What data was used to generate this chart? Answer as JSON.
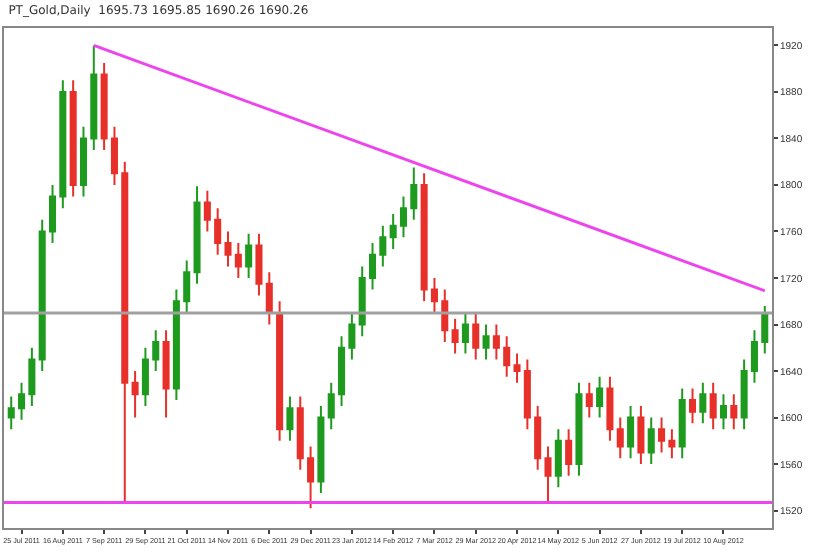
{
  "chart_data": {
    "type": "candlestick",
    "title": "PT_Gold,Daily  1695.73 1695.85 1690.26 1690.26",
    "categories": [
      null,
      "25 Jul 2011",
      null,
      null,
      null,
      "16 Aug 2011",
      null,
      null,
      null,
      "7 Sep 2011",
      null,
      null,
      null,
      "29 Sep 2011",
      null,
      null,
      null,
      "21 Oct 2011",
      null,
      null,
      null,
      "14 Nov 2011",
      null,
      null,
      null,
      "6 Dec 2011",
      null,
      null,
      null,
      "29 Dec 2011",
      null,
      null,
      null,
      "23 Jan 2012",
      null,
      null,
      null,
      "14 Feb 2012",
      null,
      null,
      null,
      "7 Mar 2012",
      null,
      null,
      null,
      "29 Mar 2012",
      null,
      null,
      null,
      "20 Apr 2012",
      null,
      null,
      null,
      "14 May 2012",
      null,
      null,
      null,
      "5 Jun 2012",
      null,
      null,
      null,
      "27 Jun 2012",
      null,
      null,
      null,
      "19 Jul 2012",
      null,
      null,
      null,
      "10 Aug 2012",
      null,
      null,
      null,
      null
    ],
    "ohlc": [
      [
        1600,
        1618,
        1590,
        1608
      ],
      [
        1608,
        1630,
        1598,
        1620
      ],
      [
        1620,
        1660,
        1610,
        1650
      ],
      [
        1650,
        1770,
        1640,
        1760
      ],
      [
        1760,
        1800,
        1750,
        1790
      ],
      [
        1790,
        1890,
        1780,
        1880
      ],
      [
        1880,
        1890,
        1790,
        1800
      ],
      [
        1800,
        1850,
        1790,
        1840
      ],
      [
        1840,
        1920,
        1830,
        1895
      ],
      [
        1895,
        1905,
        1830,
        1840
      ],
      [
        1840,
        1850,
        1800,
        1810
      ],
      [
        1810,
        1820,
        1527,
        1630
      ],
      [
        1630,
        1640,
        1600,
        1620
      ],
      [
        1620,
        1660,
        1610,
        1650
      ],
      [
        1650,
        1675,
        1640,
        1665
      ],
      [
        1665,
        1675,
        1600,
        1625
      ],
      [
        1625,
        1710,
        1615,
        1700
      ],
      [
        1700,
        1735,
        1690,
        1725
      ],
      [
        1725,
        1799,
        1715,
        1785
      ],
      [
        1785,
        1795,
        1760,
        1770
      ],
      [
        1770,
        1780,
        1740,
        1750
      ],
      [
        1750,
        1760,
        1730,
        1740
      ],
      [
        1740,
        1750,
        1720,
        1730
      ],
      [
        1730,
        1758,
        1720,
        1748
      ],
      [
        1748,
        1758,
        1705,
        1715
      ],
      [
        1715,
        1725,
        1680,
        1690
      ],
      [
        1690,
        1700,
        1580,
        1590
      ],
      [
        1590,
        1618,
        1580,
        1608
      ],
      [
        1608,
        1618,
        1555,
        1565
      ],
      [
        1565,
        1575,
        1522,
        1545
      ],
      [
        1545,
        1610,
        1535,
        1600
      ],
      [
        1600,
        1630,
        1590,
        1620
      ],
      [
        1620,
        1670,
        1610,
        1660
      ],
      [
        1660,
        1690,
        1650,
        1680
      ],
      [
        1680,
        1730,
        1670,
        1720
      ],
      [
        1720,
        1750,
        1710,
        1740
      ],
      [
        1740,
        1765,
        1730,
        1755
      ],
      [
        1755,
        1775,
        1745,
        1765
      ],
      [
        1765,
        1790,
        1755,
        1780
      ],
      [
        1780,
        1815,
        1770,
        1800
      ],
      [
        1800,
        1810,
        1700,
        1710
      ],
      [
        1710,
        1720,
        1690,
        1700
      ],
      [
        1700,
        1710,
        1665,
        1675
      ],
      [
        1675,
        1685,
        1655,
        1665
      ],
      [
        1665,
        1690,
        1655,
        1680
      ],
      [
        1680,
        1690,
        1650,
        1660
      ],
      [
        1660,
        1680,
        1650,
        1670
      ],
      [
        1670,
        1680,
        1650,
        1660
      ],
      [
        1660,
        1670,
        1635,
        1645
      ],
      [
        1645,
        1655,
        1630,
        1640
      ],
      [
        1640,
        1650,
        1590,
        1600
      ],
      [
        1600,
        1610,
        1555,
        1565
      ],
      [
        1565,
        1575,
        1527,
        1550
      ],
      [
        1550,
        1590,
        1540,
        1580
      ],
      [
        1580,
        1590,
        1550,
        1560
      ],
      [
        1560,
        1630,
        1550,
        1620
      ],
      [
        1620,
        1630,
        1600,
        1610
      ],
      [
        1610,
        1635,
        1600,
        1625
      ],
      [
        1625,
        1635,
        1580,
        1590
      ],
      [
        1590,
        1600,
        1565,
        1575
      ],
      [
        1575,
        1610,
        1565,
        1600
      ],
      [
        1600,
        1610,
        1560,
        1570
      ],
      [
        1570,
        1600,
        1560,
        1590
      ],
      [
        1590,
        1600,
        1570,
        1580
      ],
      [
        1580,
        1590,
        1565,
        1575
      ],
      [
        1575,
        1625,
        1565,
        1615
      ],
      [
        1615,
        1625,
        1595,
        1605
      ],
      [
        1605,
        1630,
        1595,
        1620
      ],
      [
        1620,
        1630,
        1590,
        1600
      ],
      [
        1600,
        1620,
        1590,
        1610
      ],
      [
        1610,
        1620,
        1590,
        1600
      ],
      [
        1600,
        1650,
        1590,
        1640
      ],
      [
        1640,
        1675,
        1630,
        1665
      ],
      [
        1665,
        1696,
        1655,
        1690
      ]
    ],
    "colors": [
      "#1e9b1e",
      "#1e9b1e",
      "#1e9b1e",
      "#1e9b1e",
      "#1e9b1e",
      "#1e9b1e",
      "#e8302a",
      "#1e9b1e",
      "#1e9b1e",
      "#e8302a",
      "#e8302a",
      "#e8302a",
      "#e8302a",
      "#1e9b1e",
      "#1e9b1e",
      "#e8302a",
      "#1e9b1e",
      "#1e9b1e",
      "#1e9b1e",
      "#e8302a",
      "#e8302a",
      "#e8302a",
      "#e8302a",
      "#1e9b1e",
      "#e8302a",
      "#e8302a",
      "#e8302a",
      "#1e9b1e",
      "#e8302a",
      "#e8302a",
      "#1e9b1e",
      "#1e9b1e",
      "#1e9b1e",
      "#1e9b1e",
      "#1e9b1e",
      "#1e9b1e",
      "#1e9b1e",
      "#1e9b1e",
      "#1e9b1e",
      "#1e9b1e",
      "#e8302a",
      "#e8302a",
      "#e8302a",
      "#e8302a",
      "#1e9b1e",
      "#e8302a",
      "#1e9b1e",
      "#e8302a",
      "#e8302a",
      "#e8302a",
      "#e8302a",
      "#e8302a",
      "#e8302a",
      "#1e9b1e",
      "#e8302a",
      "#1e9b1e",
      "#e8302a",
      "#1e9b1e",
      "#e8302a",
      "#e8302a",
      "#1e9b1e",
      "#e8302a",
      "#1e9b1e",
      "#e8302a",
      "#e8302a",
      "#1e9b1e",
      "#e8302a",
      "#1e9b1e",
      "#e8302a",
      "#1e9b1e",
      "#e8302a",
      "#1e9b1e",
      "#1e9b1e",
      "#1e9b1e"
    ],
    "series": [
      {
        "type": "line",
        "color": "#ee44ee",
        "values": [
          null,
          null,
          null,
          null,
          null,
          null,
          null,
          null,
          1920,
          null,
          null,
          null,
          null,
          null,
          null,
          null,
          null,
          null,
          null,
          null,
          null,
          null,
          null,
          null,
          null,
          null,
          null,
          null,
          null,
          null,
          null,
          null,
          null,
          null,
          null,
          null,
          null,
          null,
          null,
          null,
          null,
          null,
          null,
          null,
          null,
          null,
          null,
          null,
          null,
          null,
          null,
          null,
          null,
          null,
          null,
          null,
          null,
          null,
          null,
          null,
          null,
          null,
          null,
          null,
          null,
          null,
          null,
          null,
          null,
          null,
          null,
          null,
          null,
          1709
        ]
      }
    ],
    "ref_lines": [
      {
        "axis": "y",
        "value": 1527,
        "color": "#ee44ee"
      },
      {
        "axis": "y",
        "value": 1690,
        "color": "#a0a0a0"
      }
    ],
    "ylim": [
      1505,
      1935
    ],
    "yticks": [
      1520,
      1560,
      1600,
      1640,
      1680,
      1720,
      1760,
      1800,
      1840,
      1880,
      1920
    ],
    "grid": false
  }
}
